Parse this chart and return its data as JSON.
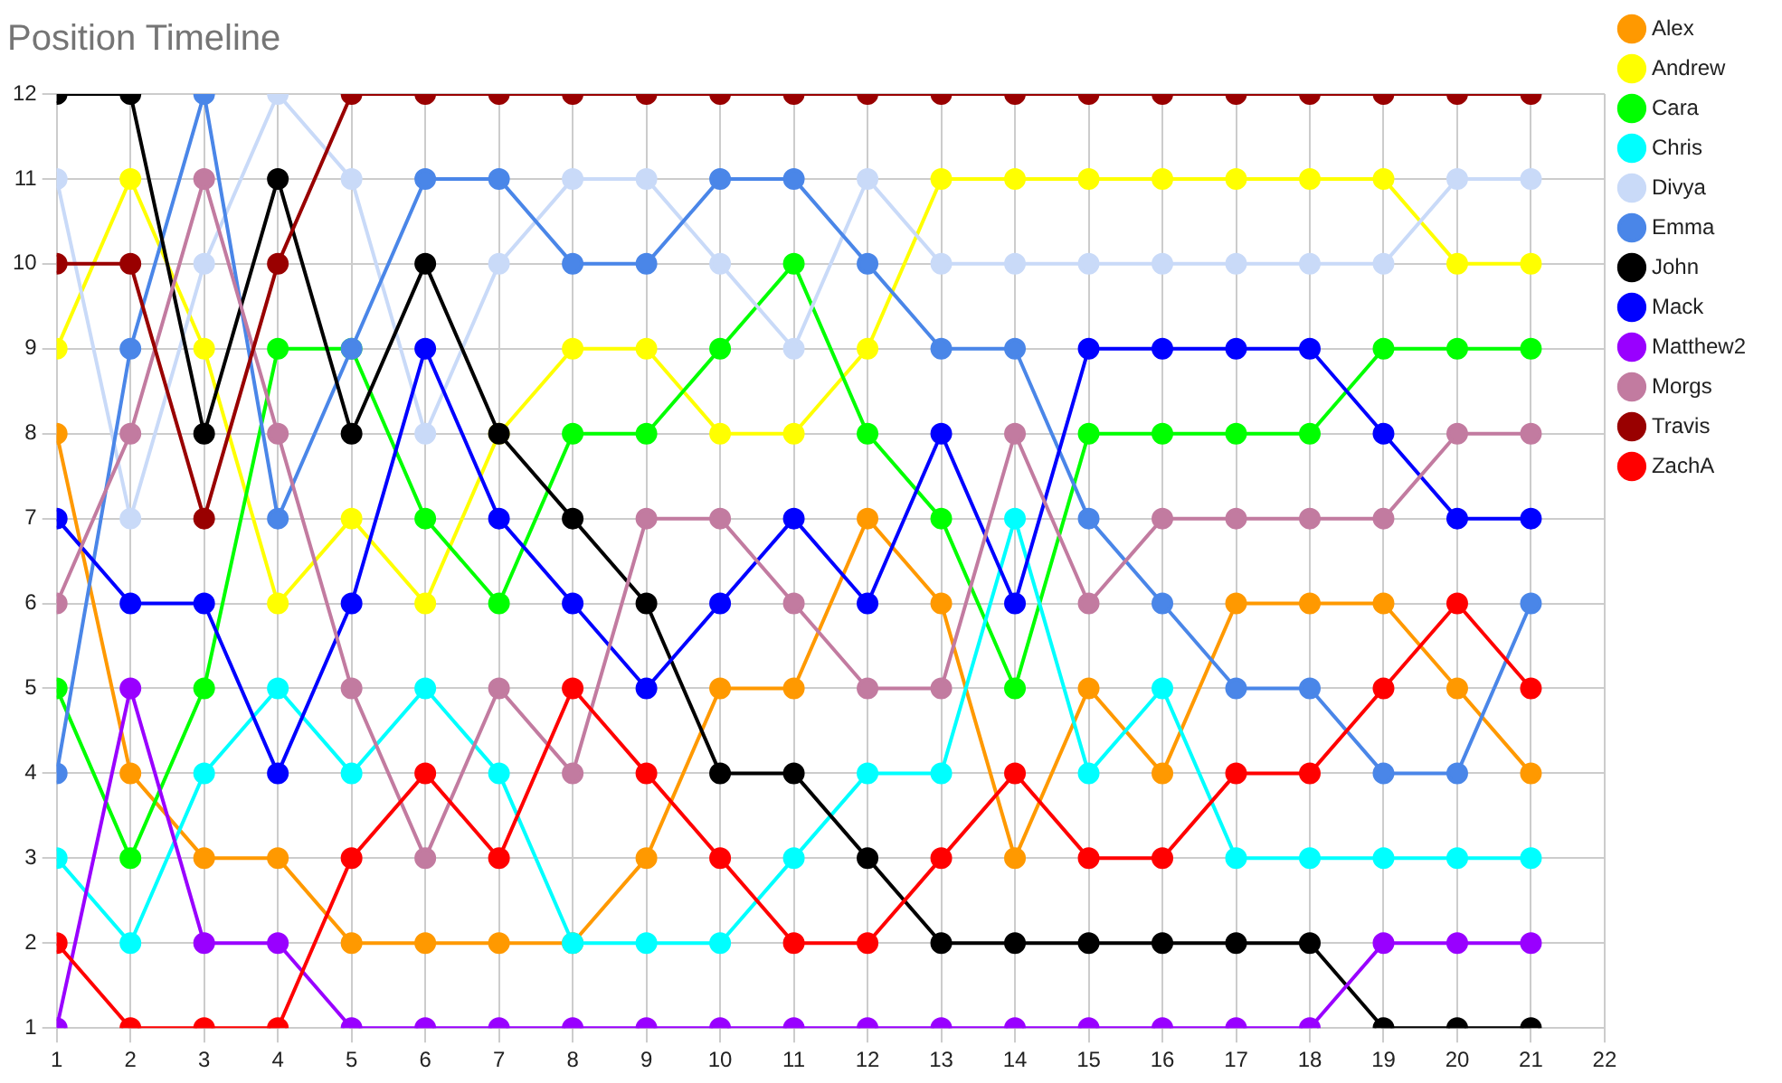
{
  "chart_data": {
    "type": "line",
    "title": "Position Timeline",
    "x": [
      1,
      2,
      3,
      4,
      5,
      6,
      7,
      8,
      9,
      10,
      11,
      12,
      13,
      14,
      15,
      16,
      17,
      18,
      19,
      20,
      21
    ],
    "xlim": [
      1,
      22
    ],
    "xticks": [
      1,
      2,
      3,
      4,
      5,
      6,
      7,
      8,
      9,
      10,
      11,
      12,
      13,
      14,
      15,
      16,
      17,
      18,
      19,
      20,
      21,
      22
    ],
    "ylim": [
      1,
      12
    ],
    "yticks": [
      1,
      2,
      3,
      4,
      5,
      6,
      7,
      8,
      9,
      10,
      11,
      12
    ],
    "grid": true,
    "legend": "right",
    "marker": "circle",
    "line_style": "solid",
    "series": [
      {
        "name": "Alex",
        "color": "#ff9900",
        "values": [
          8,
          4,
          3,
          3,
          2,
          2,
          2,
          2,
          3,
          5,
          5,
          7,
          6,
          3,
          5,
          4,
          6,
          6,
          6,
          5,
          4
        ]
      },
      {
        "name": "Andrew",
        "color": "#ffff00",
        "values": [
          9,
          11,
          9,
          6,
          7,
          6,
          8,
          9,
          9,
          8,
          8,
          9,
          11,
          11,
          11,
          11,
          11,
          11,
          11,
          10,
          10
        ]
      },
      {
        "name": "Cara",
        "color": "#00ff00",
        "values": [
          5,
          3,
          5,
          9,
          9,
          7,
          6,
          8,
          8,
          9,
          10,
          8,
          7,
          5,
          8,
          8,
          8,
          8,
          9,
          9,
          9
        ]
      },
      {
        "name": "Chris",
        "color": "#00ffff",
        "values": [
          3,
          2,
          4,
          5,
          4,
          5,
          4,
          2,
          2,
          2,
          3,
          4,
          4,
          7,
          4,
          5,
          3,
          3,
          3,
          3,
          3
        ]
      },
      {
        "name": "Divya",
        "color": "#c9daf8",
        "values": [
          11,
          7,
          10,
          12,
          11,
          8,
          10,
          11,
          11,
          10,
          9,
          11,
          10,
          10,
          10,
          10,
          10,
          10,
          10,
          11,
          11
        ]
      },
      {
        "name": "Emma",
        "color": "#4a86e8",
        "values": [
          4,
          9,
          12,
          7,
          9,
          11,
          11,
          10,
          10,
          11,
          11,
          10,
          9,
          9,
          7,
          6,
          5,
          5,
          4,
          4,
          6
        ]
      },
      {
        "name": "John",
        "color": "#000000",
        "values": [
          12,
          12,
          8,
          11,
          8,
          10,
          8,
          7,
          6,
          4,
          4,
          3,
          2,
          2,
          2,
          2,
          2,
          2,
          1,
          1,
          1
        ]
      },
      {
        "name": "Mack",
        "color": "#0000ff",
        "values": [
          7,
          6,
          6,
          4,
          6,
          9,
          7,
          6,
          5,
          6,
          7,
          6,
          8,
          6,
          9,
          9,
          9,
          9,
          8,
          7,
          7
        ]
      },
      {
        "name": "Matthew2",
        "color": "#9900ff",
        "values": [
          1,
          5,
          2,
          2,
          1,
          1,
          1,
          1,
          1,
          1,
          1,
          1,
          1,
          1,
          1,
          1,
          1,
          1,
          2,
          2,
          2
        ]
      },
      {
        "name": "Morgs",
        "color": "#c27ba0",
        "values": [
          6,
          8,
          11,
          8,
          5,
          3,
          5,
          4,
          7,
          7,
          6,
          5,
          5,
          8,
          6,
          7,
          7,
          7,
          7,
          8,
          8
        ]
      },
      {
        "name": "Travis",
        "color": "#990000",
        "values": [
          10,
          10,
          7,
          10,
          12,
          12,
          12,
          12,
          12,
          12,
          12,
          12,
          12,
          12,
          12,
          12,
          12,
          12,
          12,
          12,
          12
        ]
      },
      {
        "name": "ZachA",
        "color": "#ff0000",
        "values": [
          2,
          1,
          1,
          1,
          3,
          4,
          3,
          5,
          4,
          3,
          2,
          2,
          3,
          4,
          3,
          3,
          4,
          4,
          5,
          6,
          5
        ]
      }
    ]
  }
}
